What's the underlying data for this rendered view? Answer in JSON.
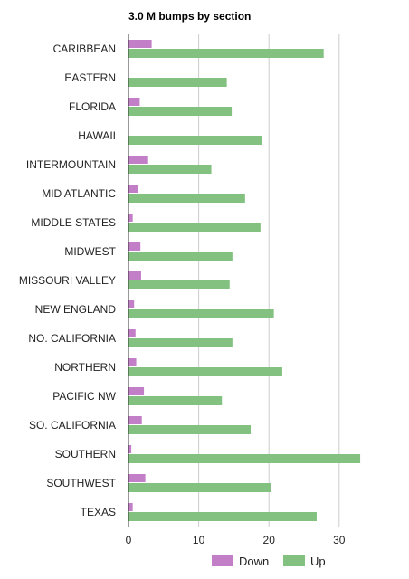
{
  "chart_data": {
    "type": "bar",
    "orientation": "horizontal",
    "title": "3.0 M bumps by section",
    "xlabel": "",
    "ylabel": "",
    "xlim": [
      0,
      40
    ],
    "xticks": [
      0,
      10,
      20,
      30
    ],
    "grid": true,
    "legend_position": "bottom",
    "categories": [
      "CARIBBEAN",
      "EASTERN",
      "FLORIDA",
      "HAWAII",
      "INTERMOUNTAIN",
      "MID ATLANTIC",
      "MIDDLE STATES",
      "MIDWEST",
      "MISSOURI VALLEY",
      "NEW ENGLAND",
      "NO. CALIFORNIA",
      "NORTHERN",
      "PACIFIC NW",
      "SO. CALIFORNIA",
      "SOUTHERN",
      "SOUTHWEST",
      "TEXAS"
    ],
    "series": [
      {
        "name": "Down",
        "color": "#c27ec6",
        "values": [
          3.3,
          0,
          1.6,
          0,
          2.8,
          1.3,
          0.6,
          1.7,
          1.8,
          0.8,
          1.0,
          1.1,
          2.2,
          1.9,
          0.4,
          2.4,
          0.6
        ]
      },
      {
        "name": "Up",
        "color": "#82c17f",
        "values": [
          27.8,
          14.0,
          14.7,
          19.0,
          11.8,
          16.6,
          18.8,
          14.8,
          14.4,
          20.7,
          14.8,
          21.9,
          13.3,
          17.4,
          33.0,
          20.3,
          26.8
        ]
      }
    ]
  }
}
